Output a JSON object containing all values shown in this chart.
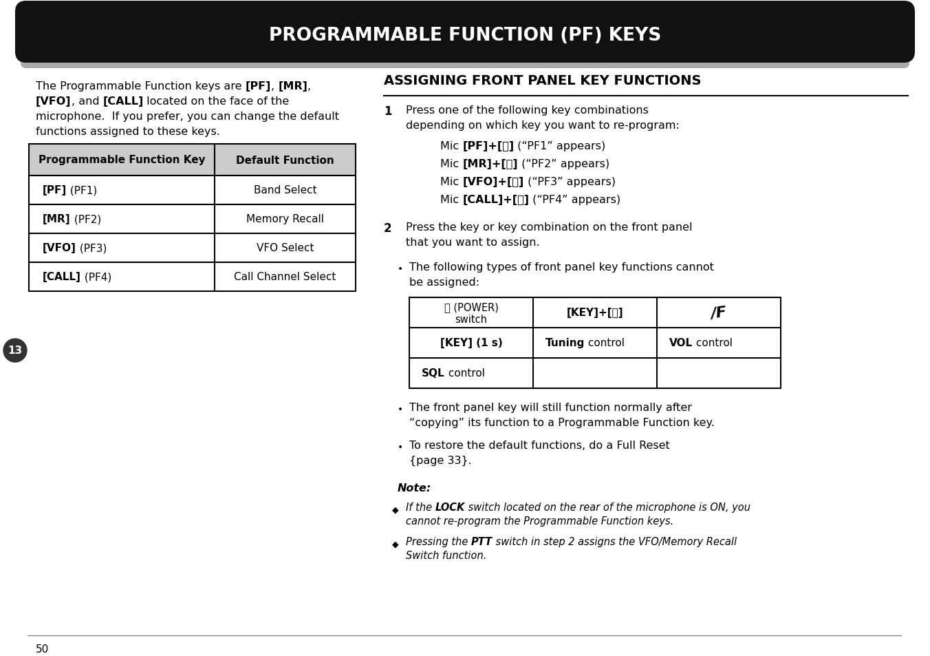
{
  "title": "PROGRAMMABLE FUNCTION (PF) KEYS",
  "title_bg": "#111111",
  "title_color": "#ffffff",
  "page_bg": "#ffffff",
  "table1_header": [
    "Programmable Function Key",
    "Default Function"
  ],
  "table1_rows": [
    [
      "[PF]",
      " (PF1)",
      "Band Select"
    ],
    [
      "[MR]",
      " (PF2)",
      "Memory Recall"
    ],
    [
      "[VFO]",
      " (PF3)",
      "VFO Select"
    ],
    [
      "[CALL]",
      " (PF4)",
      "Call Channel Select"
    ]
  ],
  "right_heading": "ASSIGNING FRONT PANEL KEY FUNCTIONS",
  "step1_intro": "Press one of the following key combinations\ndepending on which key you want to re-program:",
  "mic_lines": [
    [
      "Mic ",
      "[PF]+[⏻]",
      " (“PF1” appears)"
    ],
    [
      "Mic ",
      "[MR]+[⏻]",
      " (“PF2” appears)"
    ],
    [
      "Mic ",
      "[VFO]+[⏻]",
      " (“PF3” appears)"
    ],
    [
      "Mic ",
      "[CALL]+[⏻]",
      " (“PF4” appears)"
    ]
  ],
  "step2_text": "Press the key or key combination on the front panel\nthat you want to assign.",
  "bullet1_lines": [
    "The following types of front panel key functions cannot",
    "be assigned:"
  ],
  "t2_r0_c0a": "⏻ (POWER)",
  "t2_r0_c0b": "switch",
  "t2_r0_c1": "[KEY]+[⏻]",
  "t2_r0_c2": "/F",
  "t2_r1_c0_bold": "[KEY] (1 s)",
  "t2_r1_c1_bold": "Tuning",
  "t2_r1_c1_normal": " control",
  "t2_r1_c2_bold": "VOL",
  "t2_r1_c2_normal": " control",
  "t2_r2_c0_bold": "SQL",
  "t2_r2_c0_normal": " control",
  "bullet2_lines": [
    "The front panel key will still function normally after",
    "“copying” its function to a Programmable Function key."
  ],
  "bullet3_lines": [
    "To restore the default functions, do a Full Reset",
    "{page 33}."
  ],
  "note_label": "Note:",
  "note1_pre": "If the ",
  "note1_bold": "LOCK",
  "note1_post": " switch located on the rear of the microphone is ON, you",
  "note1_line2": "cannot re-program the Programmable Function keys.",
  "note2_pre": "Pressing the ",
  "note2_bold": "PTT",
  "note2_post": " switch in step 2 assigns the VFO/Memory Recall",
  "note2_line2": "Switch function.",
  "page_num": "50",
  "chapter_num": "13",
  "left_intro_line1_normal1": "The Programmable Function keys are ",
  "left_intro_line1_bold1": "[PF]",
  "left_intro_line1_normal2": ", ",
  "left_intro_line1_bold2": "[MR]",
  "left_intro_line1_normal3": ",",
  "left_intro_line2_bold1": "[VFO]",
  "left_intro_line2_normal1": ", and ",
  "left_intro_line2_bold2": "[CALL]",
  "left_intro_line2_normal2": " located on the face of the",
  "left_intro_line3": "microphone.  If you prefer, you can change the default",
  "left_intro_line4": "functions assigned to these keys."
}
